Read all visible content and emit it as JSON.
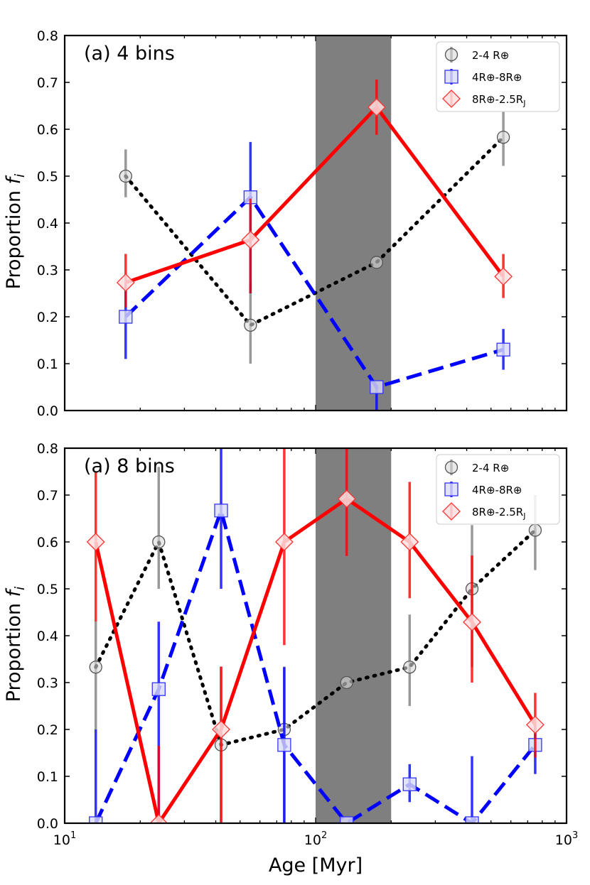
{
  "figure": {
    "xlabel": "Age [Myr]",
    "ylabel_prefix": "Proportion ",
    "ylabel_var": "f",
    "ylabel_sub": "i",
    "xtick_labels": [
      {
        "base": "10",
        "exp": "1",
        "value": 10
      },
      {
        "base": "10",
        "exp": "2",
        "value": 100
      },
      {
        "base": "10",
        "exp": "3",
        "value": 1000
      }
    ],
    "ytick_labels": [
      "0.0",
      "0.1",
      "0.2",
      "0.3",
      "0.4",
      "0.5",
      "0.6",
      "0.7",
      "0.8"
    ],
    "shaded_band": {
      "x": [
        100,
        200
      ],
      "color": "#7f7f7f"
    },
    "legend": [
      {
        "label": "2-4 R⊕",
        "series": 0
      },
      {
        "label": "4R⊕-8R⊕",
        "series": 1
      },
      {
        "label": "8R⊕-2.5R",
        "sub": "J",
        "series": 2
      }
    ]
  },
  "chart_data": [
    {
      "type": "line",
      "title": "(a) 4 bins",
      "xscale": "log",
      "xlim": [
        10,
        1000
      ],
      "ylim": [
        0,
        0.8
      ],
      "legend_position": "top-right",
      "series": [
        {
          "name": "2-4 R⊕",
          "color": "#000000",
          "errcolor": "#808080",
          "linestyle": "dotted",
          "marker": "circle",
          "x": [
            17.5,
            55,
            175,
            560
          ],
          "y": [
            0.5,
            0.182,
            0.316,
            0.583
          ],
          "err_low": [
            0.455,
            0.1,
            0.25,
            0.522
          ],
          "err_high": [
            0.557,
            0.272,
            0.377,
            0.637
          ]
        },
        {
          "name": "4R⊕-8R⊕",
          "color": "#0000ff",
          "errcolor": "#0000ff",
          "linestyle": "dashed",
          "marker": "square",
          "x": [
            17.5,
            55,
            175,
            560
          ],
          "y": [
            0.2,
            0.455,
            0.05,
            0.13
          ],
          "err_low": [
            0.11,
            0.25,
            0.0,
            0.087
          ],
          "err_high": [
            0.272,
            0.573,
            0.05,
            0.174
          ]
        },
        {
          "name": "8R⊕-2.5RJ",
          "color": "#ff0000",
          "errcolor": "#ff0000",
          "linestyle": "solid",
          "marker": "diamond",
          "x": [
            17.5,
            55,
            175,
            560
          ],
          "y": [
            0.273,
            0.364,
            0.647,
            0.286
          ],
          "err_low": [
            0.22,
            0.25,
            0.588,
            0.24
          ],
          "err_high": [
            0.334,
            0.452,
            0.706,
            0.334
          ]
        }
      ]
    },
    {
      "type": "line",
      "title": "(a) 8 bins",
      "xscale": "log",
      "xlim": [
        10,
        1000
      ],
      "ylim": [
        0,
        0.8
      ],
      "legend_position": "top-right",
      "series": [
        {
          "name": "2-4 R⊕",
          "color": "#000000",
          "errcolor": "#808080",
          "linestyle": "dotted",
          "marker": "circle",
          "x": [
            13.3,
            23.7,
            42,
            75,
            133,
            237,
            420,
            750
          ],
          "y": [
            0.333,
            0.6,
            0.167,
            0.2,
            0.3,
            0.333,
            0.5,
            0.625
          ],
          "err_low": [
            0.2,
            0.5,
            0.0,
            0.0,
            0.2,
            0.25,
            0.333,
            0.54
          ],
          "err_high": [
            0.43,
            0.76,
            0.334,
            0.334,
            0.4,
            0.445,
            0.636,
            0.7
          ]
        },
        {
          "name": "4R⊕-8R⊕",
          "color": "#0000ff",
          "errcolor": "#0000ff",
          "linestyle": "dashed",
          "marker": "square",
          "x": [
            13.3,
            23.7,
            42,
            75,
            133,
            237,
            420,
            750
          ],
          "y": [
            0.0,
            0.286,
            0.667,
            0.167,
            0.0,
            0.083,
            0.0,
            0.167
          ],
          "err_low": [
            0.0,
            0.0,
            0.5,
            0.0,
            0.0,
            0.045,
            0.0,
            0.105
          ],
          "err_high": [
            0.2,
            0.43,
            0.8,
            0.333,
            0.0,
            0.126,
            0.143,
            0.21
          ]
        },
        {
          "name": "8R⊕-2.5RJ",
          "color": "#ff0000",
          "errcolor": "#ff0000",
          "linestyle": "solid",
          "marker": "diamond",
          "x": [
            13.3,
            23.7,
            42,
            75,
            133,
            237,
            420,
            750
          ],
          "y": [
            0.6,
            0.0,
            0.2,
            0.6,
            0.692,
            0.6,
            0.429,
            0.21
          ],
          "err_low": [
            0.43,
            0.0,
            0.0,
            0.38,
            0.57,
            0.48,
            0.3,
            0.14
          ],
          "err_high": [
            0.75,
            0.165,
            0.334,
            0.8,
            0.8,
            0.728,
            0.571,
            0.278
          ]
        }
      ]
    }
  ]
}
